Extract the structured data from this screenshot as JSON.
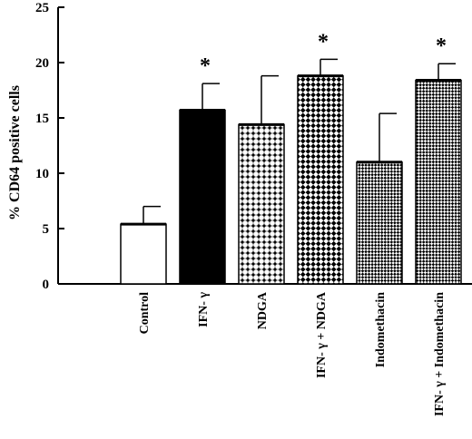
{
  "chart_data": {
    "type": "bar",
    "title": "",
    "xlabel": "",
    "ylabel": "% CD64 positive cells",
    "ylim": [
      0,
      25
    ],
    "yticks": [
      0,
      5,
      10,
      15,
      20,
      25
    ],
    "grid": false,
    "legend": "none",
    "categories": [
      "Control",
      "IFN- γ",
      "NDGA",
      "IFN- γ + NDGA",
      "Indomethacin",
      "IFN- γ + Indomethacin"
    ],
    "values": [
      5.4,
      15.7,
      14.4,
      18.8,
      11.0,
      18.4
    ],
    "errors": [
      1.6,
      2.4,
      4.4,
      1.5,
      4.4,
      1.5
    ],
    "significance": [
      "",
      "*",
      "",
      "*",
      "",
      "*"
    ],
    "fills": [
      "white",
      "solid-black",
      "dotted-grid",
      "diagonal-check",
      "fine-check",
      "fine-check"
    ]
  }
}
